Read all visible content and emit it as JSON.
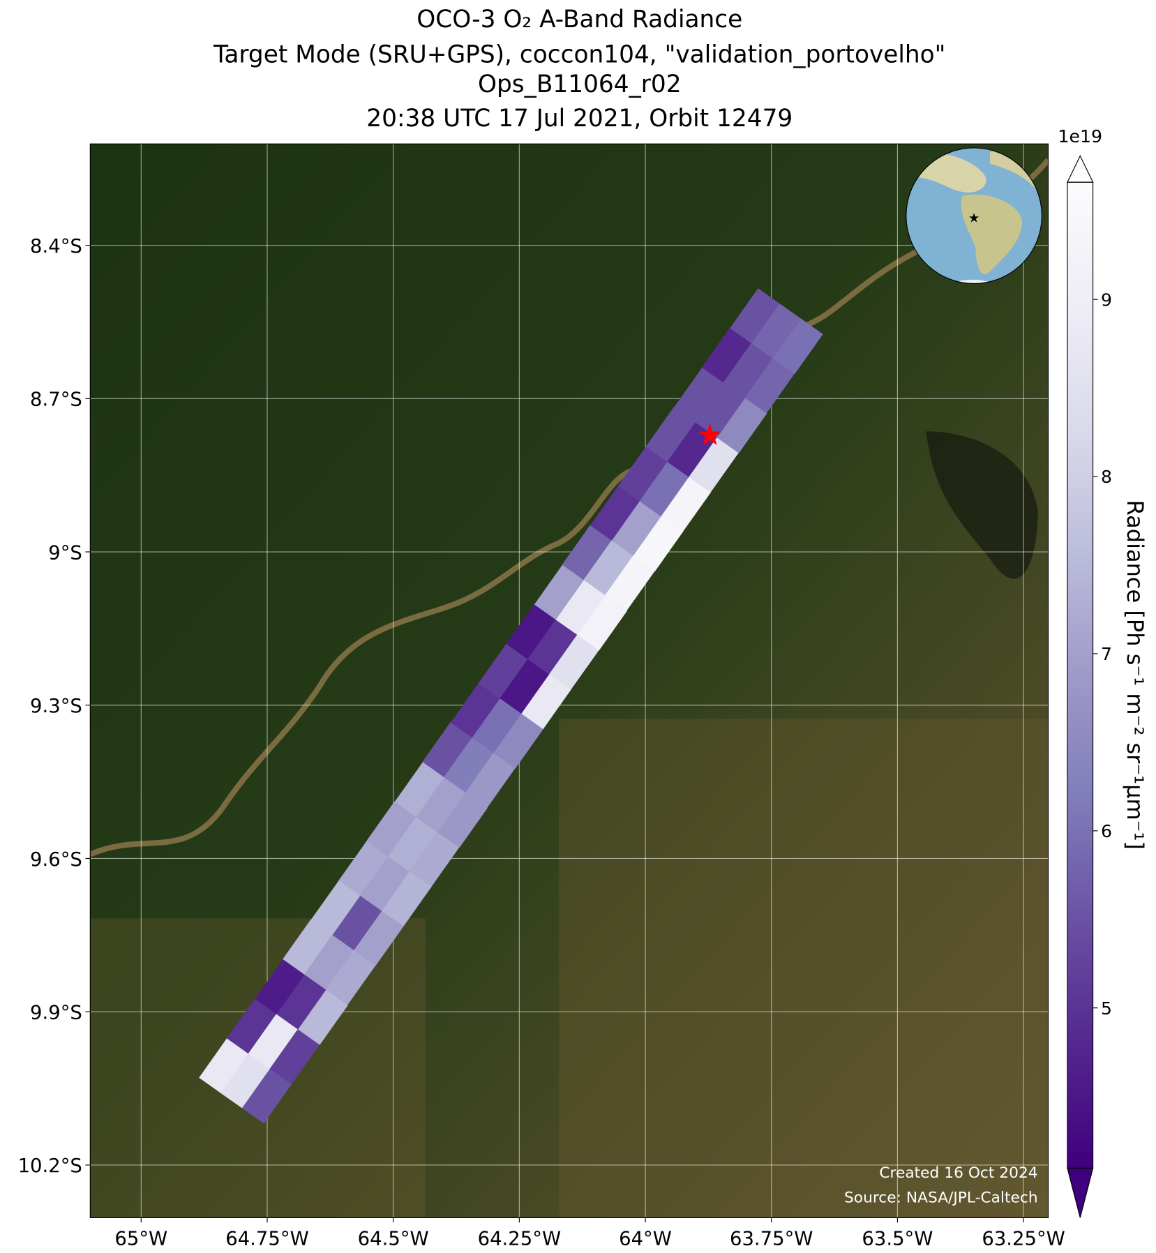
{
  "chart_data": {
    "type": "swath_map",
    "title": [
      "OCO-3 O₂ A-Band Radiance",
      "Target Mode (SRU+GPS), coccon104, \"validation_portovelho\"",
      "Ops_B11064_r02",
      "20:38 UTC 17 Jul 2021, Orbit 12479"
    ],
    "xlim": [
      -65.101,
      -63.201
    ],
    "ylim": [
      -10.303,
      -8.2016
    ],
    "xticks": [
      {
        "value": -65,
        "label": "65°W"
      },
      {
        "value": -64.75,
        "label": "64.75°W"
      },
      {
        "value": -64.5,
        "label": "64.5°W"
      },
      {
        "value": -64.25,
        "label": "64.25°W"
      },
      {
        "value": -64,
        "label": "64°W"
      },
      {
        "value": -63.75,
        "label": "63.75°W"
      },
      {
        "value": -63.5,
        "label": "63.5°W"
      },
      {
        "value": -63.25,
        "label": "63.25°W"
      }
    ],
    "yticks": [
      {
        "value": -8.4,
        "label": "8.4°S"
      },
      {
        "value": -8.7,
        "label": "8.7°S"
      },
      {
        "value": -9,
        "label": "9°S"
      },
      {
        "value": -9.3,
        "label": "9.3°S"
      },
      {
        "value": -9.6,
        "label": "9.6°S"
      },
      {
        "value": -9.9,
        "label": "9.9°S"
      },
      {
        "value": -10.2,
        "label": "10.2°S"
      }
    ],
    "grid": true,
    "swath": {
      "lon": [
        -64.793,
        -64.738,
        -64.682,
        -64.627,
        -64.571,
        -64.516,
        -64.461,
        -64.405,
        -64.35,
        -64.294,
        -64.239,
        -64.184,
        -64.128,
        -64.073,
        -64.017,
        -63.962,
        -63.907,
        -63.851,
        -63.796,
        -63.74
      ],
      "lat": [
        -10.035,
        -9.958,
        -9.881,
        -9.803,
        -9.726,
        -9.649,
        -9.572,
        -9.495,
        -9.417,
        -9.34,
        -9.263,
        -9.186,
        -9.109,
        -9.031,
        -8.954,
        -8.877,
        -8.8,
        -8.723,
        -8.645,
        -8.568
      ],
      "values": [
        [
          8.8,
          8.5,
          5.5
        ],
        [
          5.0,
          8.8,
          5.2
        ],
        [
          4.6,
          5.0,
          7.5
        ],
        [
          7.5,
          7.0,
          7.2
        ],
        [
          7.5,
          5.5,
          7.0
        ],
        [
          7.2,
          7.0,
          7.4
        ],
        [
          7.0,
          7.3,
          7.2
        ],
        [
          7.3,
          7.0,
          6.8
        ],
        [
          5.5,
          6.2,
          6.8
        ],
        [
          5.0,
          6.0,
          6.5
        ],
        [
          5.2,
          4.5,
          8.8
        ],
        [
          4.5,
          5.0,
          8.5
        ],
        [
          7.0,
          8.8,
          9.2
        ],
        [
          5.8,
          7.5,
          9.3
        ],
        [
          5.0,
          7.0,
          9.4
        ],
        [
          5.2,
          6.0,
          9.3
        ],
        [
          5.5,
          4.8,
          8.5
        ],
        [
          5.5,
          5.5,
          6.5
        ],
        [
          4.8,
          5.5,
          5.8
        ],
        [
          5.5,
          5.8,
          6.0
        ]
      ]
    },
    "target": {
      "lon": -63.872,
      "lat": -8.772,
      "color": "#ff0000"
    },
    "colorbar": {
      "label": "Radiance [Ph s⁻¹ m⁻² sr⁻¹μm⁻¹]",
      "offset_label": "1e19",
      "clim": [
        4.095,
        9.662
      ],
      "ticks": [
        5,
        6,
        7,
        8,
        9
      ],
      "colormap": [
        "#3f007d",
        "#54278f",
        "#6a51a3",
        "#807dba",
        "#9e9ac8",
        "#bcbddc",
        "#dadaeb",
        "#efedf5",
        "#fcfbfd"
      ]
    },
    "credits": [
      "Created 16 Oct 2024",
      "Source: NASA/JPL-Caltech"
    ]
  }
}
